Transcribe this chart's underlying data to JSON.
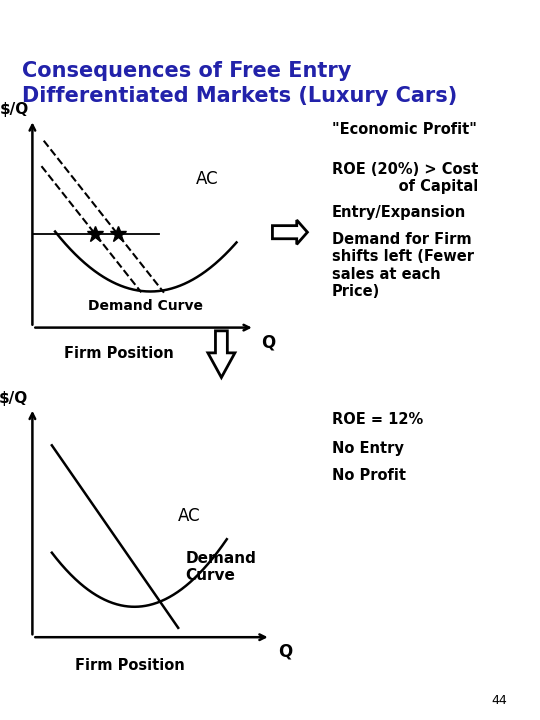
{
  "title_line1": "Consequences of Free Entry",
  "title_line2": "Differentiated Markets (Luxury Cars)",
  "title_color": "#2222AA",
  "background_color": "#FFFFFF",
  "top_bar_color": "#000000",
  "right_text_top": [
    "\"Economic Profit\"",
    "ROE (20%) > Cost\n     of Capital",
    "Entry/Expansion",
    "Demand for Firm\nshifts left (Fewer\nsales at each\nPrice)"
  ],
  "right_text_bottom": [
    "ROE = 12%",
    "No Entry",
    "No Profit"
  ],
  "page_number": "44",
  "font_size_title": 15,
  "font_size_labels": 11,
  "font_size_right": 10.5
}
